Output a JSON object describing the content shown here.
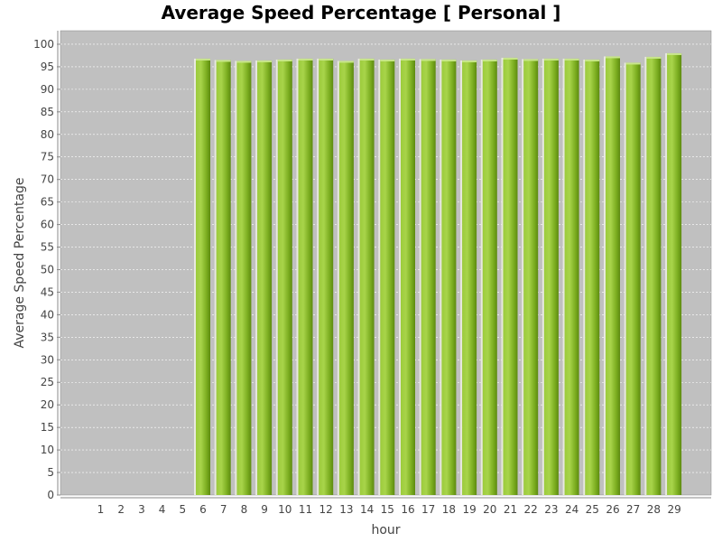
{
  "chart_data": {
    "type": "bar",
    "title": "Average Speed Percentage [ Personal ]",
    "xlabel": "hour",
    "ylabel": "Average Speed Percentage",
    "categories": [
      "1",
      "2",
      "3",
      "4",
      "5",
      "6",
      "7",
      "8",
      "9",
      "10",
      "11",
      "12",
      "13",
      "14",
      "15",
      "16",
      "17",
      "18",
      "19",
      "20",
      "21",
      "22",
      "23",
      "24",
      "25",
      "26",
      "27",
      "28",
      "29"
    ],
    "values": [
      0,
      0,
      0,
      0,
      0,
      96.8,
      96.5,
      96.3,
      96.4,
      96.6,
      96.8,
      96.8,
      96.3,
      96.8,
      96.6,
      96.8,
      96.7,
      96.6,
      96.4,
      96.6,
      97.0,
      96.7,
      96.8,
      96.8,
      96.6,
      97.3,
      95.9,
      97.2,
      98.0
    ],
    "ylim": [
      0,
      103
    ],
    "yticks": [
      0,
      5,
      10,
      15,
      20,
      25,
      30,
      35,
      40,
      45,
      50,
      55,
      60,
      65,
      70,
      75,
      80,
      85,
      90,
      95,
      100
    ],
    "grid": true,
    "legend": "none",
    "colors": {
      "plot_background": "#c0c0c0",
      "bar_light": "#a8d44a",
      "bar_mid": "#7aac1f",
      "bar_dark": "#5d8a10",
      "gridline": "#ffffff",
      "text": "#444444"
    }
  }
}
